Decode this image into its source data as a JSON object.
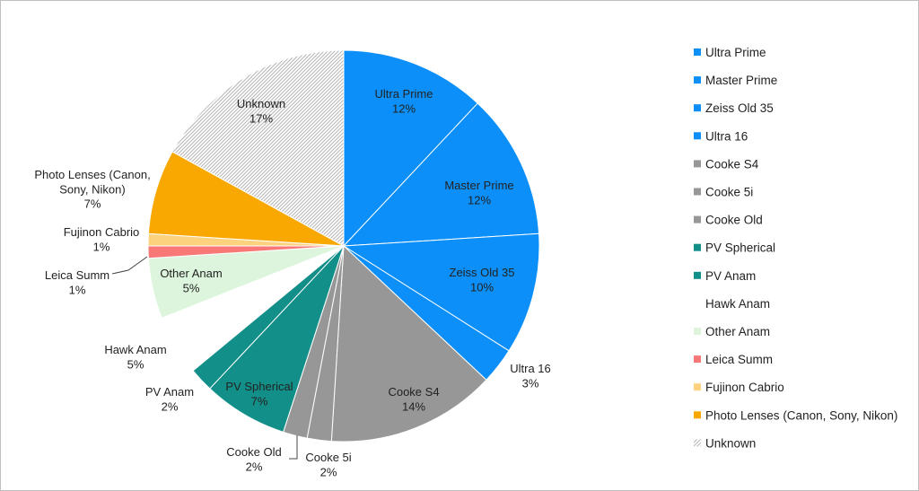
{
  "chart_data": {
    "type": "pie",
    "title": "",
    "legend_position": "right",
    "slices": [
      {
        "name": "Ultra Prime",
        "value": 12,
        "label": "12%",
        "color": "#0c8ff8"
      },
      {
        "name": "Master Prime",
        "value": 12,
        "label": "12%",
        "color": "#0c8ff8"
      },
      {
        "name": "Zeiss Old 35",
        "value": 10,
        "label": "10%",
        "color": "#0c8ff8"
      },
      {
        "name": "Ultra 16",
        "value": 3,
        "label": "3%",
        "color": "#0c8ff8"
      },
      {
        "name": "Cooke S4",
        "value": 14,
        "label": "14%",
        "color": "#979797"
      },
      {
        "name": "Cooke 5i",
        "value": 2,
        "label": "2%",
        "color": "#979797"
      },
      {
        "name": "Cooke Old",
        "value": 2,
        "label": "2%",
        "color": "#979797"
      },
      {
        "name": "PV Spherical",
        "value": 7,
        "label": "7%",
        "color": "#128f88"
      },
      {
        "name": "PV Anam",
        "value": 2,
        "label": "2%",
        "color": "#128f88"
      },
      {
        "name": "Hawk Anam",
        "value": 5,
        "label": "5%",
        "color": "#ffffff"
      },
      {
        "name": "Other Anam",
        "value": 5,
        "label": "5%",
        "color": "#dcf5dc"
      },
      {
        "name": "Leica Summ",
        "value": 1,
        "label": "1%",
        "color": "#f87878"
      },
      {
        "name": "Fujinon Cabrio",
        "value": 1,
        "label": "1%",
        "color": "#fdd27f"
      },
      {
        "name": "Photo Lenses (Canon, Sony, Nikon)",
        "value": 7,
        "label": "7%",
        "color": "#f8a800"
      },
      {
        "name": "Unknown",
        "value": 17,
        "label": "17%",
        "color": "hatch"
      }
    ]
  }
}
